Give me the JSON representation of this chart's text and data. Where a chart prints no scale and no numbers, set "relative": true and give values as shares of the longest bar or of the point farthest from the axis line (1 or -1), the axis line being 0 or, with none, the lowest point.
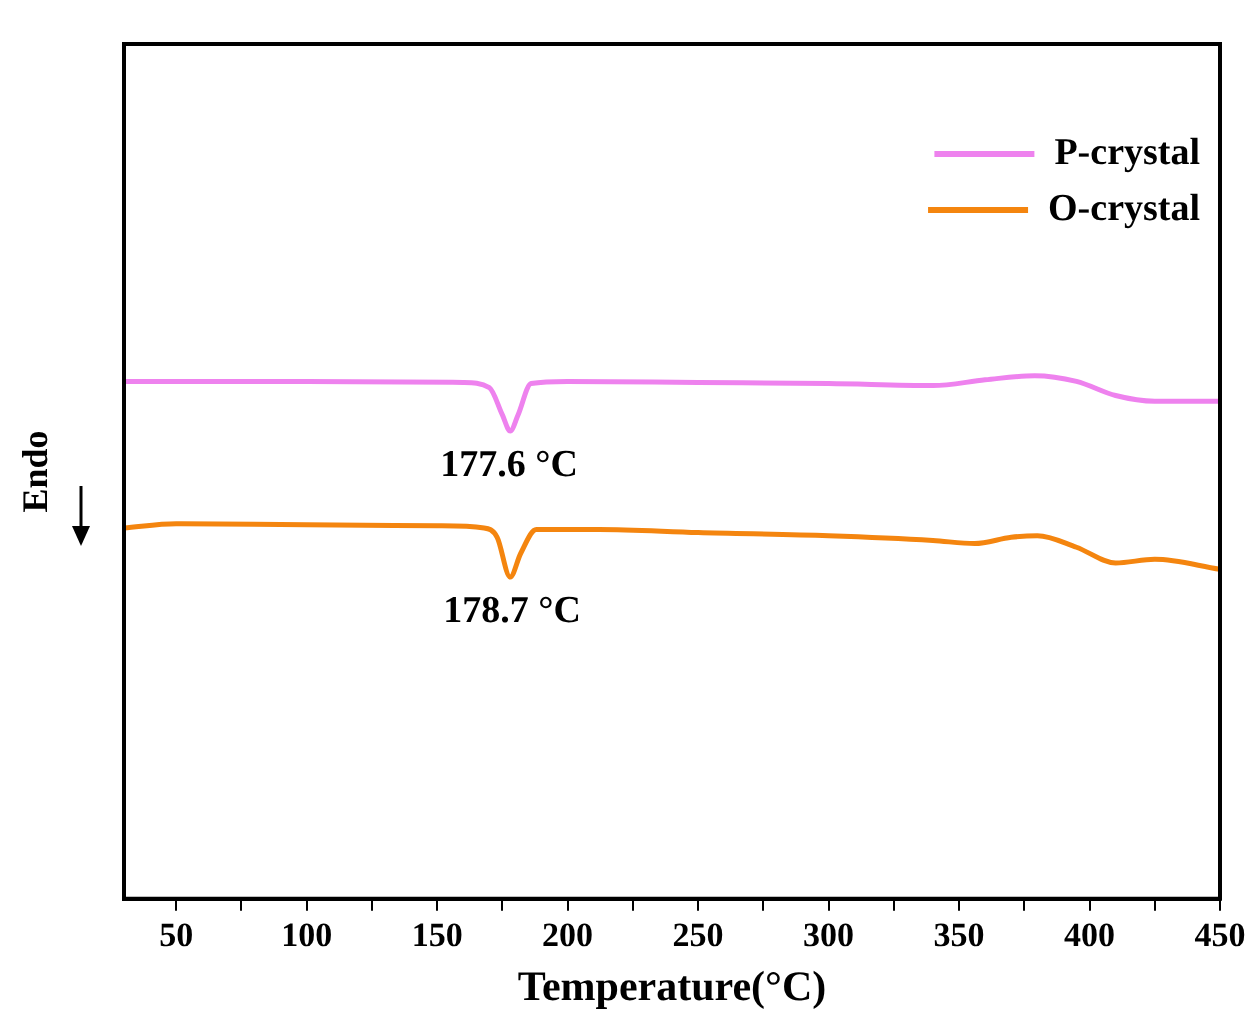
{
  "chart_data": {
    "type": "line",
    "relative": true,
    "xlabel": "Temperature(°C)",
    "ylabel": "Endo",
    "xlim": [
      30,
      450
    ],
    "xticks": [
      50,
      {
        "value": 75,
        "label": null
      },
      100,
      {
        "value": 125,
        "label": null
      },
      150,
      {
        "value": 175,
        "label": null
      },
      200,
      {
        "value": 225,
        "label": null
      },
      250,
      {
        "value": 275,
        "label": null
      },
      300,
      {
        "value": 325,
        "label": null
      },
      350,
      {
        "value": 375,
        "label": null
      },
      400,
      {
        "value": 425,
        "label": null
      },
      450
    ],
    "grid": false,
    "legend": "top right",
    "marker": "none",
    "line_style": "solid",
    "tick_labels": "x",
    "annotations": [
      {
        "text": "177.6 °C",
        "x": 177.6,
        "y": 0.894
      },
      {
        "text": "178.7 °C",
        "x": 178.7,
        "y": 0.615
      }
    ],
    "series": [
      {
        "name": "P-crystal",
        "color": "#ee82ee",
        "x": [
          30,
          100,
          160,
          170,
          175,
          178,
          181,
          186,
          200,
          250,
          300,
          340,
          360,
          379,
          395,
          410,
          425,
          450
        ],
        "values": [
          0.989,
          0.989,
          0.987,
          0.977,
          0.925,
          0.894,
          0.925,
          0.985,
          0.989,
          0.987,
          0.985,
          0.981,
          0.992,
          1,
          0.989,
          0.962,
          0.951,
          0.951
        ]
      },
      {
        "name": "O-crystal",
        "color": "#f4850f",
        "x": [
          30,
          50,
          100,
          150,
          168,
          173,
          178,
          182,
          188,
          212,
          250,
          300,
          340,
          356,
          370,
          380,
          395,
          410,
          425,
          450
        ],
        "values": [
          0.709,
          0.717,
          0.715,
          0.713,
          0.709,
          0.691,
          0.615,
          0.66,
          0.706,
          0.706,
          0.7,
          0.694,
          0.685,
          0.679,
          0.691,
          0.694,
          0.672,
          0.642,
          0.649,
          0.63
        ]
      }
    ]
  }
}
